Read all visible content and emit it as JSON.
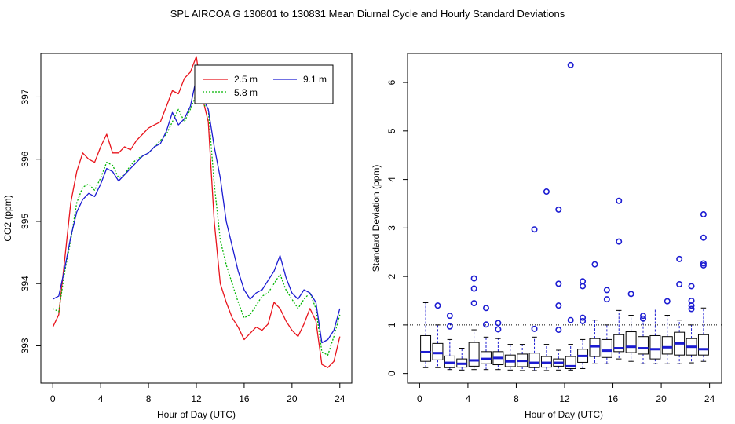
{
  "title": "SPL   AIRCOA G   130801 to 130831   Mean Diurnal Cycle and Hourly Standard Deviations",
  "chart_data": [
    {
      "type": "line",
      "xlabel": "Hour of Day (UTC)",
      "ylabel": "CO2 (ppm)",
      "xlim": [
        -1,
        25
      ],
      "ylim": [
        392.4,
        397.7
      ],
      "xticks": [
        0,
        4,
        8,
        12,
        16,
        20,
        24
      ],
      "yticks": [
        393,
        394,
        395,
        396,
        397
      ],
      "legend_position": "top-center",
      "x": [
        0,
        0.5,
        1,
        1.5,
        2,
        2.5,
        3,
        3.5,
        4,
        4.5,
        5,
        5.5,
        6,
        6.5,
        7,
        7.5,
        8,
        8.5,
        9,
        9.5,
        10,
        10.5,
        11,
        11.5,
        12,
        12.5,
        13,
        13.5,
        14,
        14.5,
        15,
        15.5,
        16,
        16.5,
        17,
        17.5,
        18,
        18.5,
        19,
        19.5,
        20,
        20.5,
        21,
        21.5,
        22,
        22.5,
        23,
        23.5,
        24
      ],
      "series": [
        {
          "name": "2.5 m",
          "color": "#e8141c",
          "values": [
            393.3,
            393.5,
            394.4,
            395.3,
            395.8,
            396.1,
            396.0,
            395.95,
            396.2,
            396.4,
            396.1,
            396.1,
            396.2,
            396.15,
            396.3,
            396.4,
            396.5,
            396.55,
            396.6,
            396.85,
            397.1,
            397.05,
            397.3,
            397.4,
            397.65,
            397.0,
            396.6,
            395.0,
            394.0,
            393.7,
            393.45,
            393.3,
            393.1,
            393.2,
            393.3,
            393.25,
            393.35,
            393.7,
            393.6,
            393.4,
            393.25,
            393.15,
            393.35,
            393.6,
            393.4,
            392.7,
            392.65,
            392.75,
            393.15
          ]
        },
        {
          "name": "5.8 m",
          "color": "#00b400",
          "values": [
            393.6,
            393.55,
            394.2,
            394.7,
            395.3,
            395.55,
            395.6,
            395.5,
            395.7,
            395.95,
            395.9,
            395.7,
            395.75,
            395.9,
            396.0,
            396.05,
            396.1,
            396.2,
            396.3,
            396.4,
            396.6,
            396.8,
            396.6,
            396.8,
            397.05,
            396.9,
            396.8,
            395.6,
            394.7,
            394.3,
            394.0,
            393.7,
            393.45,
            393.5,
            393.65,
            393.8,
            393.85,
            394.0,
            394.15,
            393.9,
            393.75,
            393.6,
            393.75,
            393.85,
            393.6,
            392.9,
            392.85,
            393.15,
            393.5
          ]
        },
        {
          "name": "9.1 m",
          "color": "#1c1cd2",
          "values": [
            393.75,
            393.8,
            394.25,
            394.75,
            395.15,
            395.35,
            395.45,
            395.4,
            395.6,
            395.85,
            395.8,
            395.65,
            395.75,
            395.85,
            395.95,
            396.05,
            396.1,
            396.2,
            396.25,
            396.45,
            396.75,
            396.55,
            396.65,
            396.85,
            397.3,
            397.0,
            396.8,
            396.2,
            395.7,
            395.0,
            394.6,
            394.2,
            393.9,
            393.75,
            393.85,
            393.9,
            394.05,
            394.2,
            394.45,
            394.1,
            393.85,
            393.75,
            393.9,
            393.85,
            393.7,
            393.05,
            393.1,
            393.25,
            393.6
          ]
        }
      ]
    },
    {
      "type": "box",
      "xlabel": "Hour of Day (UTC)",
      "ylabel": "Standard Deviation (ppm)",
      "xlim": [
        -1,
        25
      ],
      "ylim": [
        -0.2,
        6.6
      ],
      "xticks": [
        0,
        4,
        8,
        12,
        16,
        20,
        24
      ],
      "yticks": [
        0,
        1,
        2,
        3,
        4,
        5,
        6
      ],
      "reference_line": 1,
      "boxes": [
        {
          "x": 0.5,
          "whisker_low": 0.12,
          "q1": 0.25,
          "median": 0.44,
          "q3": 0.78,
          "whisker_high": 1.46,
          "outliers": []
        },
        {
          "x": 1.5,
          "whisker_low": 0.12,
          "q1": 0.28,
          "median": 0.42,
          "q3": 0.62,
          "whisker_high": 1.0,
          "outliers": [
            1.4
          ]
        },
        {
          "x": 2.5,
          "whisker_low": 0.08,
          "q1": 0.12,
          "median": 0.22,
          "q3": 0.36,
          "whisker_high": 0.7,
          "outliers": [
            0.97,
            1.19
          ]
        },
        {
          "x": 3.5,
          "whisker_low": 0.07,
          "q1": 0.13,
          "median": 0.2,
          "q3": 0.3,
          "whisker_high": 0.52,
          "outliers": []
        },
        {
          "x": 4.5,
          "whisker_low": 0.08,
          "q1": 0.15,
          "median": 0.27,
          "q3": 0.64,
          "whisker_high": 0.9,
          "outliers": [
            1.45,
            1.75,
            1.96
          ]
        },
        {
          "x": 5.5,
          "whisker_low": 0.08,
          "q1": 0.2,
          "median": 0.3,
          "q3": 0.45,
          "whisker_high": 0.75,
          "outliers": [
            1.01,
            1.35
          ]
        },
        {
          "x": 6.5,
          "whisker_low": 0.08,
          "q1": 0.18,
          "median": 0.32,
          "q3": 0.45,
          "whisker_high": 0.72,
          "outliers": [
            0.91,
            1.04
          ]
        },
        {
          "x": 7.5,
          "whisker_low": 0.07,
          "q1": 0.14,
          "median": 0.25,
          "q3": 0.38,
          "whisker_high": 0.6,
          "outliers": []
        },
        {
          "x": 8.5,
          "whisker_low": 0.06,
          "q1": 0.14,
          "median": 0.26,
          "q3": 0.4,
          "whisker_high": 0.6,
          "outliers": []
        },
        {
          "x": 9.5,
          "whisker_low": 0.06,
          "q1": 0.12,
          "median": 0.22,
          "q3": 0.42,
          "whisker_high": 0.75,
          "outliers": [
            0.92,
            2.97
          ]
        },
        {
          "x": 10.5,
          "whisker_low": 0.06,
          "q1": 0.13,
          "median": 0.22,
          "q3": 0.35,
          "whisker_high": 0.6,
          "outliers": [
            3.75
          ]
        },
        {
          "x": 11.5,
          "whisker_low": 0.07,
          "q1": 0.15,
          "median": 0.22,
          "q3": 0.3,
          "whisker_high": 0.48,
          "outliers": [
            0.9,
            1.4,
            1.85,
            3.38
          ]
        },
        {
          "x": 12.5,
          "whisker_low": 0.07,
          "q1": 0.1,
          "median": 0.15,
          "q3": 0.35,
          "whisker_high": 0.6,
          "outliers": [
            1.1,
            6.36
          ]
        },
        {
          "x": 13.5,
          "whisker_low": 0.1,
          "q1": 0.23,
          "median": 0.36,
          "q3": 0.5,
          "whisker_high": 0.7,
          "outliers": [
            1.08,
            1.15,
            1.8,
            1.9
          ]
        },
        {
          "x": 14.5,
          "whisker_low": 0.2,
          "q1": 0.35,
          "median": 0.56,
          "q3": 0.72,
          "whisker_high": 1.1,
          "outliers": [
            2.25
          ]
        },
        {
          "x": 15.5,
          "whisker_low": 0.2,
          "q1": 0.33,
          "median": 0.47,
          "q3": 0.7,
          "whisker_high": 1.0,
          "outliers": [
            1.53,
            1.72
          ]
        },
        {
          "x": 16.5,
          "whisker_low": 0.3,
          "q1": 0.45,
          "median": 0.52,
          "q3": 0.8,
          "whisker_high": 1.3,
          "outliers": [
            2.72,
            3.56
          ]
        },
        {
          "x": 17.5,
          "whisker_low": 0.25,
          "q1": 0.43,
          "median": 0.55,
          "q3": 0.86,
          "whisker_high": 1.2,
          "outliers": [
            1.64
          ]
        },
        {
          "x": 18.5,
          "whisker_low": 0.2,
          "q1": 0.4,
          "median": 0.52,
          "q3": 0.76,
          "whisker_high": 1.1,
          "outliers": [
            1.13,
            1.19
          ]
        },
        {
          "x": 19.5,
          "whisker_low": 0.2,
          "q1": 0.3,
          "median": 0.5,
          "q3": 0.78,
          "whisker_high": 1.33,
          "outliers": []
        },
        {
          "x": 20.5,
          "whisker_low": 0.2,
          "q1": 0.4,
          "median": 0.54,
          "q3": 0.76,
          "whisker_high": 1.2,
          "outliers": [
            1.49
          ]
        },
        {
          "x": 21.5,
          "whisker_low": 0.2,
          "q1": 0.38,
          "median": 0.62,
          "q3": 0.85,
          "whisker_high": 1.1,
          "outliers": [
            1.84,
            2.36
          ]
        },
        {
          "x": 22.5,
          "whisker_low": 0.22,
          "q1": 0.38,
          "median": 0.55,
          "q3": 0.72,
          "whisker_high": 1.0,
          "outliers": [
            1.33,
            1.4,
            1.5,
            1.8
          ]
        },
        {
          "x": 23.5,
          "whisker_low": 0.25,
          "q1": 0.38,
          "median": 0.5,
          "q3": 0.8,
          "whisker_high": 1.35,
          "outliers": [
            2.23,
            2.27,
            2.8,
            3.28
          ]
        }
      ]
    }
  ]
}
